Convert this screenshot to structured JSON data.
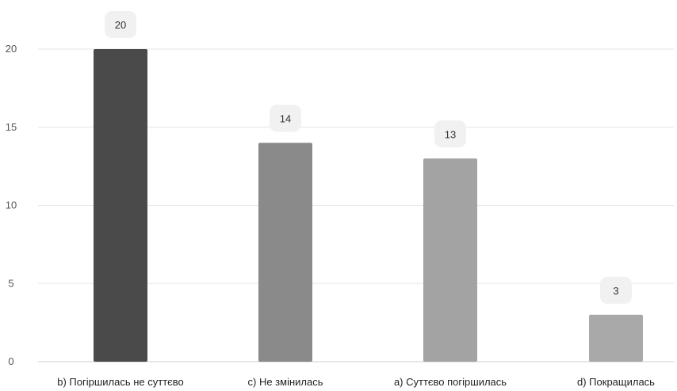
{
  "chart_data": {
    "type": "bar",
    "categories": [
      "b) Погіршилась не суттєво",
      "c) Не змінилась",
      "a) Суттєво погіршилась",
      "d) Покращилась"
    ],
    "values": [
      20,
      14,
      13,
      3
    ],
    "bar_colors": [
      "#4a4a4a",
      "#8a8a8a",
      "#a3a3a3",
      "#a9a9a9"
    ],
    "y_ticks": [
      0,
      5,
      10,
      15,
      20
    ],
    "ylim": [
      0,
      20
    ],
    "grid": true,
    "legend": "none",
    "title": "",
    "xlabel": "",
    "ylabel": ""
  }
}
